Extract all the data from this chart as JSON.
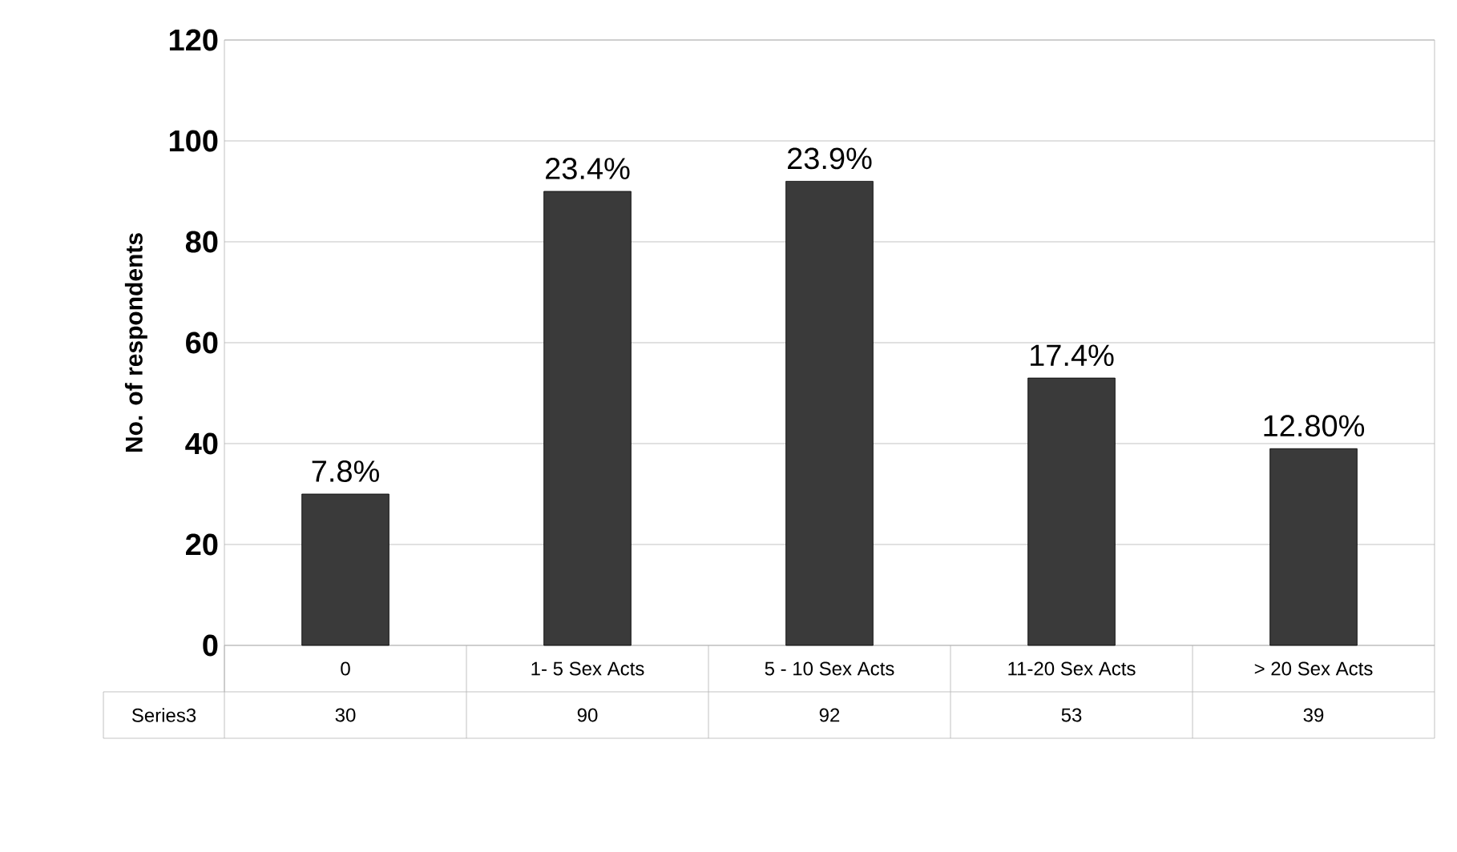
{
  "chart_data": {
    "type": "bar",
    "ylabel": "No. of respondents",
    "categories": [
      "0",
      "1- 5 Sex Acts",
      "5 - 10 Sex Acts",
      "11-20 Sex Acts",
      "> 20 Sex Acts"
    ],
    "series": [
      {
        "name": "Series3",
        "color": "#3a3a3a",
        "values": [
          30,
          90,
          92,
          53,
          39
        ]
      }
    ],
    "value_labels": [
      "7.8%",
      "23.4%",
      "23.9%",
      "17.4%",
      "12.80%"
    ],
    "data_labels": true,
    "ylim": [
      0,
      120
    ],
    "yticks": [
      0,
      20,
      40,
      60,
      80,
      100,
      120
    ],
    "grid": "y"
  }
}
